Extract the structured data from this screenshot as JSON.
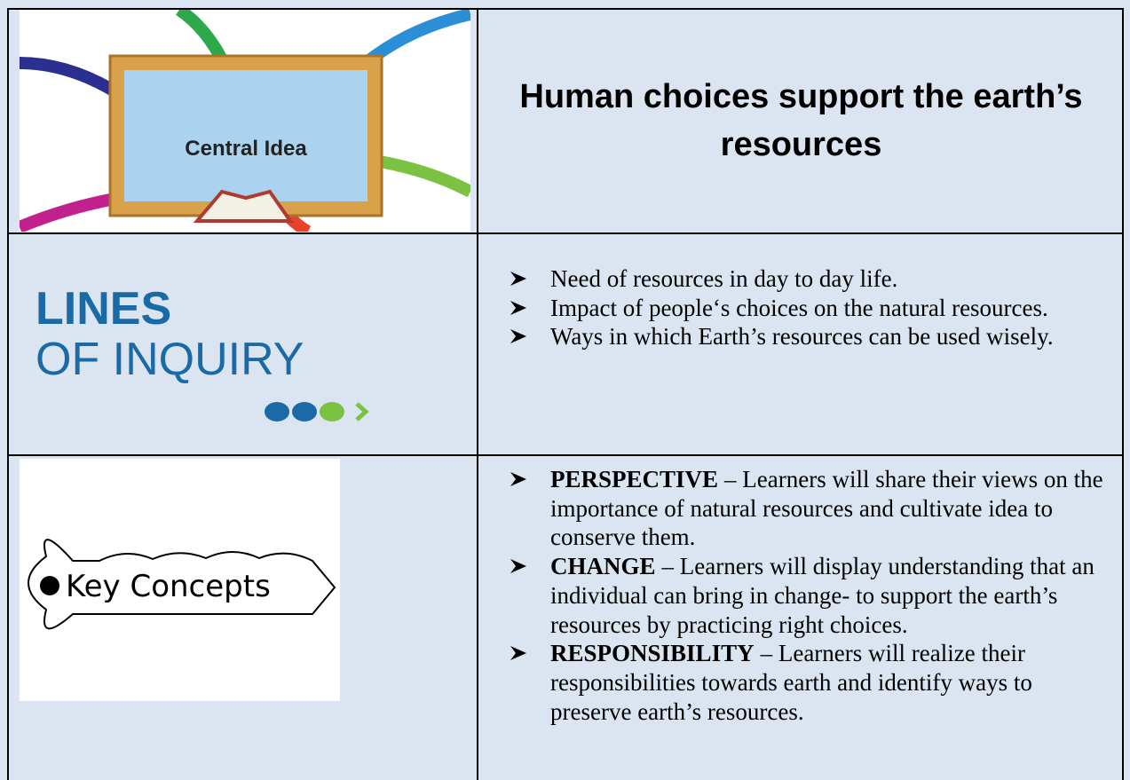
{
  "rows": [
    {
      "image": {
        "label": "Central Idea"
      },
      "title": "Human choices support the earth’s resources"
    },
    {
      "image": {
        "line1": "LINES",
        "line2": "OF INQUIRY"
      },
      "bullets": [
        "Need of resources in day to day life.",
        "Impact of people‘s choices on the natural resources.",
        "Ways in which Earth’s resources can be used wisely."
      ]
    },
    {
      "image": {
        "label": "Key Concepts"
      },
      "bullets": [
        {
          "term": "PERSPECTIVE",
          "text": "– Learners will share their views on the importance of natural resources and cultivate idea to conserve them."
        },
        {
          "term": "CHANGE",
          "text": "– Learners will display understanding that an individual can bring in change- to support the earth’s resources by practicing right choices."
        },
        {
          "term": "RESPONSIBILITY",
          "text": "– Learners will realize their responsibilities towards earth and identify ways to preserve earth’s resources."
        }
      ]
    }
  ]
}
